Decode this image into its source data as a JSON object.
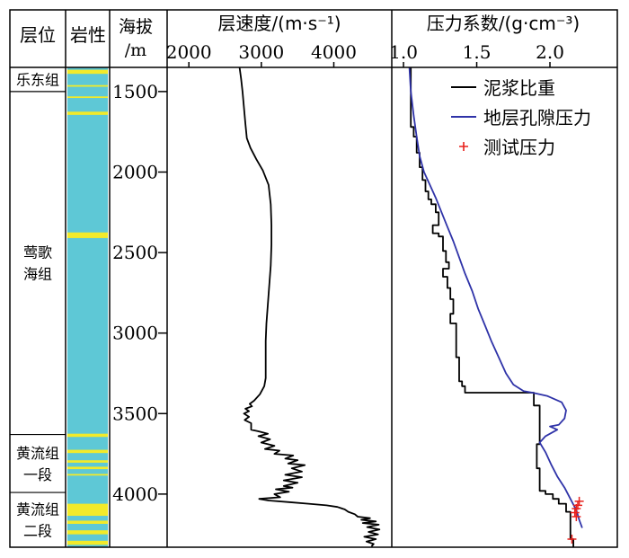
{
  "headers": {
    "formation": "层位",
    "lithology": "岩性",
    "elevation_line1": "海拔",
    "elevation_line2": "/m",
    "velocity": "层速度/(m·s⁻¹)",
    "pressure": "压力系数/(g·cm⁻³)"
  },
  "formations": [
    {
      "id": "ledong",
      "lines": [
        "乐东组"
      ],
      "top": 1350,
      "bottom": 1500
    },
    {
      "id": "yinggehai",
      "lines": [
        "莺歌",
        "海组"
      ],
      "top": 1500,
      "bottom": 3630
    },
    {
      "id": "huangliu-1",
      "lines": [
        "黄流组",
        "一段"
      ],
      "top": 3630,
      "bottom": 3990
    },
    {
      "id": "huangliu-2",
      "lines": [
        "黄流组",
        "二段"
      ],
      "top": 3990,
      "bottom": 4330
    }
  ],
  "lithology": {
    "base_color": "#5ec8d6",
    "band_color": "#f2ea2a",
    "bands": [
      {
        "top": 1365,
        "bottom": 1390
      },
      {
        "top": 1460,
        "bottom": 1470
      },
      {
        "top": 1530,
        "bottom": 1540
      },
      {
        "top": 1625,
        "bottom": 1645
      },
      {
        "top": 2375,
        "bottom": 2410
      },
      {
        "top": 3625,
        "bottom": 3645
      },
      {
        "top": 3725,
        "bottom": 3745
      },
      {
        "top": 3790,
        "bottom": 3805
      },
      {
        "top": 3830,
        "bottom": 3845
      },
      {
        "top": 3875,
        "bottom": 3885
      },
      {
        "top": 4060,
        "bottom": 4135
      },
      {
        "top": 4165,
        "bottom": 4185
      },
      {
        "top": 4225,
        "bottom": 4250
      },
      {
        "top": 4290,
        "bottom": 4315
      }
    ]
  },
  "chart_data": [
    {
      "type": "line",
      "name_ref": "velocity",
      "y_ticks": [
        1500,
        2000,
        2500,
        3000,
        3500,
        4000
      ],
      "ylim": [
        1350,
        4330
      ],
      "xlim": [
        1700,
        4800
      ],
      "x_ticks": [
        2000,
        3000,
        4000
      ],
      "x_tick_labels": [
        "2000",
        "3000",
        "4000"
      ],
      "series": [
        {
          "color": "#000000",
          "points": [
            [
              2700,
              1350
            ],
            [
              2720,
              1420
            ],
            [
              2740,
              1500
            ],
            [
              2760,
              1600
            ],
            [
              2780,
              1700
            ],
            [
              2800,
              1790
            ],
            [
              2850,
              1850
            ],
            [
              2930,
              1920
            ],
            [
              3020,
              1990
            ],
            [
              3100,
              2080
            ],
            [
              3130,
              2200
            ],
            [
              3140,
              2330
            ],
            [
              3140,
              2450
            ],
            [
              3130,
              2580
            ],
            [
              3110,
              2700
            ],
            [
              3090,
              2820
            ],
            [
              3070,
              2940
            ],
            [
              3060,
              3050
            ],
            [
              3060,
              3170
            ],
            [
              3060,
              3280
            ],
            [
              3040,
              3330
            ],
            [
              2980,
              3380
            ],
            [
              2900,
              3420
            ],
            [
              2840,
              3440
            ],
            [
              2870,
              3455
            ],
            [
              2780,
              3470
            ],
            [
              2830,
              3485
            ],
            [
              2760,
              3500
            ],
            [
              2830,
              3520
            ],
            [
              2770,
              3540
            ],
            [
              2860,
              3560
            ],
            [
              2860,
              3580
            ],
            [
              2860,
              3600
            ],
            [
              2960,
              3610
            ],
            [
              3090,
              3625
            ],
            [
              2960,
              3640
            ],
            [
              3120,
              3660
            ],
            [
              3000,
              3680
            ],
            [
              3180,
              3700
            ],
            [
              3050,
              3720
            ],
            [
              3250,
              3730
            ],
            [
              3180,
              3750
            ],
            [
              3440,
              3760
            ],
            [
              3330,
              3780
            ],
            [
              3500,
              3790
            ],
            [
              3370,
              3810
            ],
            [
              3600,
              3820
            ],
            [
              3420,
              3840
            ],
            [
              3560,
              3860
            ],
            [
              3330,
              3880
            ],
            [
              3560,
              3895
            ],
            [
              3310,
              3915
            ],
            [
              3500,
              3930
            ],
            [
              3310,
              3950
            ],
            [
              3430,
              3960
            ],
            [
              3200,
              3970
            ],
            [
              3380,
              3985
            ],
            [
              3180,
              4000
            ],
            [
              3260,
              4020
            ],
            [
              2970,
              4030
            ],
            [
              3100,
              4040
            ],
            [
              3380,
              4050
            ],
            [
              3650,
              4060
            ],
            [
              3900,
              4070
            ],
            [
              4050,
              4080
            ],
            [
              4150,
              4095
            ],
            [
              4200,
              4110
            ],
            [
              4290,
              4125
            ],
            [
              4330,
              4140
            ],
            [
              4500,
              4150
            ],
            [
              4380,
              4160
            ],
            [
              4580,
              4170
            ],
            [
              4400,
              4180
            ],
            [
              4620,
              4190
            ],
            [
              4460,
              4205
            ],
            [
              4630,
              4220
            ],
            [
              4480,
              4235
            ],
            [
              4610,
              4250
            ],
            [
              4420,
              4265
            ],
            [
              4580,
              4280
            ],
            [
              4450,
              4295
            ],
            [
              4550,
              4310
            ],
            [
              4520,
              4325
            ]
          ]
        }
      ]
    },
    {
      "type": "line",
      "name_ref": "pressure",
      "ylim": [
        1350,
        4330
      ],
      "xlim": [
        0.92,
        2.46
      ],
      "x_ticks": [
        1.0,
        1.5,
        2.0
      ],
      "x_tick_labels": [
        "1.0",
        "1.5",
        "2.0"
      ],
      "legend_position": "top-right",
      "series": [
        {
          "name": "泥浆比重",
          "color": "#000000",
          "points": [
            [
              1.05,
              1350
            ],
            [
              1.05,
              1720
            ],
            [
              1.07,
              1720
            ],
            [
              1.07,
              1780
            ],
            [
              1.09,
              1780
            ],
            [
              1.09,
              1880
            ],
            [
              1.11,
              1880
            ],
            [
              1.11,
              1970
            ],
            [
              1.13,
              1970
            ],
            [
              1.13,
              2050
            ],
            [
              1.15,
              2050
            ],
            [
              1.15,
              2120
            ],
            [
              1.17,
              2120
            ],
            [
              1.17,
              2170
            ],
            [
              1.19,
              2170
            ],
            [
              1.19,
              2200
            ],
            [
              1.22,
              2200
            ],
            [
              1.22,
              2250
            ],
            [
              1.24,
              2250
            ],
            [
              1.24,
              2330
            ],
            [
              1.2,
              2330
            ],
            [
              1.2,
              2380
            ],
            [
              1.24,
              2380
            ],
            [
              1.24,
              2400
            ],
            [
              1.27,
              2400
            ],
            [
              1.27,
              2490
            ],
            [
              1.29,
              2490
            ],
            [
              1.29,
              2560
            ],
            [
              1.31,
              2560
            ],
            [
              1.31,
              2600
            ],
            [
              1.27,
              2600
            ],
            [
              1.27,
              2650
            ],
            [
              1.3,
              2650
            ],
            [
              1.3,
              2720
            ],
            [
              1.32,
              2720
            ],
            [
              1.32,
              2790
            ],
            [
              1.34,
              2790
            ],
            [
              1.34,
              2880
            ],
            [
              1.32,
              2880
            ],
            [
              1.32,
              2940
            ],
            [
              1.36,
              2940
            ],
            [
              1.36,
              3150
            ],
            [
              1.38,
              3150
            ],
            [
              1.38,
              3300
            ],
            [
              1.4,
              3300
            ],
            [
              1.4,
              3330
            ],
            [
              1.42,
              3330
            ],
            [
              1.42,
              3370
            ],
            [
              1.89,
              3370
            ],
            [
              1.89,
              3450
            ],
            [
              1.93,
              3450
            ],
            [
              1.93,
              3690
            ],
            [
              1.91,
              3690
            ],
            [
              1.91,
              3840
            ],
            [
              1.93,
              3840
            ],
            [
              1.93,
              3980
            ],
            [
              1.97,
              3980
            ],
            [
              1.97,
              4000
            ],
            [
              2.02,
              4000
            ],
            [
              2.02,
              4030
            ],
            [
              2.06,
              4030
            ],
            [
              2.06,
              4060
            ],
            [
              2.11,
              4060
            ],
            [
              2.11,
              4110
            ],
            [
              2.14,
              4110
            ],
            [
              2.14,
              4280
            ],
            [
              2.16,
              4280
            ],
            [
              2.16,
              4330
            ]
          ]
        },
        {
          "name": "地层孔隙压力",
          "color": "#2f33a8",
          "points": [
            [
              1.04,
              1350
            ],
            [
              1.05,
              1500
            ],
            [
              1.07,
              1650
            ],
            [
              1.09,
              1780
            ],
            [
              1.11,
              1900
            ],
            [
              1.14,
              2000
            ],
            [
              1.18,
              2080
            ],
            [
              1.22,
              2160
            ],
            [
              1.26,
              2250
            ],
            [
              1.3,
              2340
            ],
            [
              1.34,
              2430
            ],
            [
              1.38,
              2530
            ],
            [
              1.42,
              2630
            ],
            [
              1.47,
              2740
            ],
            [
              1.51,
              2850
            ],
            [
              1.56,
              2960
            ],
            [
              1.6,
              3050
            ],
            [
              1.65,
              3150
            ],
            [
              1.7,
              3250
            ],
            [
              1.75,
              3320
            ],
            [
              1.82,
              3360
            ],
            [
              1.88,
              3370
            ],
            [
              1.98,
              3390
            ],
            [
              2.08,
              3430
            ],
            [
              2.11,
              3480
            ],
            [
              2.1,
              3530
            ],
            [
              2.06,
              3570
            ],
            [
              2.0,
              3580
            ],
            [
              2.05,
              3600
            ],
            [
              1.97,
              3640
            ],
            [
              1.93,
              3680
            ],
            [
              1.97,
              3740
            ],
            [
              2.01,
              3820
            ],
            [
              2.05,
              3890
            ],
            [
              2.1,
              3960
            ],
            [
              2.14,
              4030
            ],
            [
              2.18,
              4100
            ],
            [
              2.2,
              4160
            ],
            [
              2.22,
              4210
            ]
          ]
        },
        {
          "name": "测试压力",
          "color": "#e8201c",
          "marker": "plus",
          "points": [
            [
              2.2,
              4045
            ],
            [
              2.19,
              4070
            ],
            [
              2.18,
              4090
            ],
            [
              2.17,
              4115
            ],
            [
              2.18,
              4140
            ],
            [
              2.15,
              4280
            ]
          ]
        }
      ]
    }
  ]
}
